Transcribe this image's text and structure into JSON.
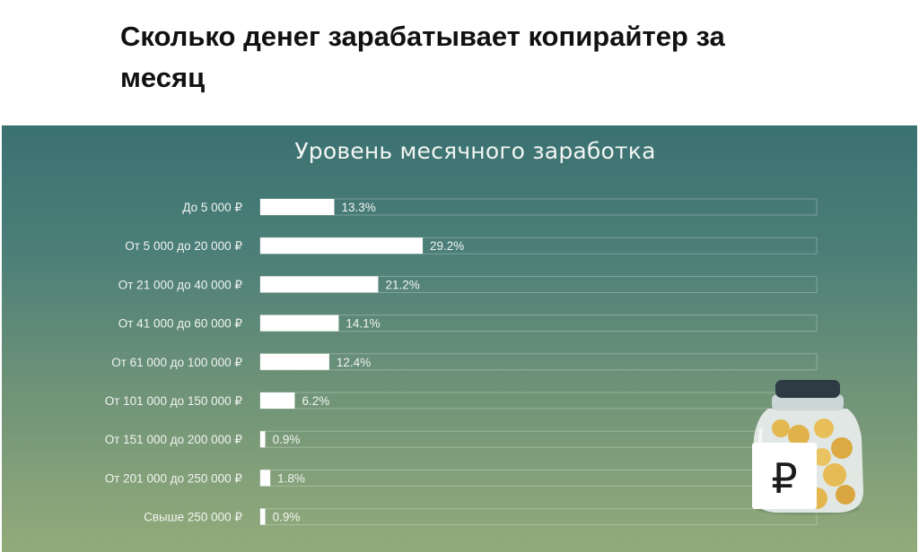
{
  "article": {
    "heading": "Сколько денег зарабатывает копирайтер за месяц"
  },
  "chart_data": {
    "type": "bar",
    "orientation": "horizontal",
    "title": "Уровень месячного заработка",
    "categories": [
      "До 5 000 ₽",
      "От 5 000 до 20 000 ₽",
      "От 21 000 до 40 000 ₽",
      "От 41 000 до 60 000 ₽",
      "От 61 000 до 100 000 ₽",
      "От 101 000 до 150 000 ₽",
      "От 151 000 до 200 000 ₽",
      "От 201 000 до 250 000 ₽",
      "Свыше 250 000 ₽"
    ],
    "values": [
      13.3,
      29.2,
      21.2,
      14.1,
      12.4,
      6.2,
      0.9,
      1.8,
      0.9
    ],
    "value_labels": [
      "13.3%",
      "29.2%",
      "21.2%",
      "14.1%",
      "12.4%",
      "6.2%",
      "0.9%",
      "1.8%",
      "0.9%"
    ],
    "unit": "%",
    "xlim": [
      0,
      100
    ],
    "grid": false,
    "legend": "none",
    "colors": {
      "bar": "#ffffff",
      "track": "rgba(255,255,255,0.28)",
      "label": "#f1f4f1",
      "background_top": "#3a7171",
      "background_bottom": "#93ab7a"
    }
  },
  "illustration": {
    "icon": "money-jar-icon",
    "jar_label": "₽"
  }
}
